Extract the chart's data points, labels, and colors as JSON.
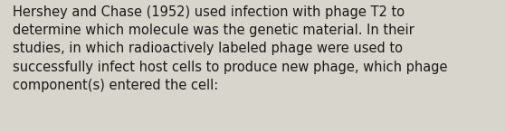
{
  "text": "Hershey and Chase (1952) used infection with phage T2 to\ndetermine which molecule was the genetic material. In their\nstudies, in which radioactively labeled phage were used to\nsuccessfully infect host cells to produce new phage, which phage\ncomponent(s) entered the cell:",
  "background_color": "#d8d5cc",
  "text_color": "#1a1a1a",
  "font_size": 10.5,
  "fig_width": 5.58,
  "fig_height": 1.46,
  "dpi": 100
}
